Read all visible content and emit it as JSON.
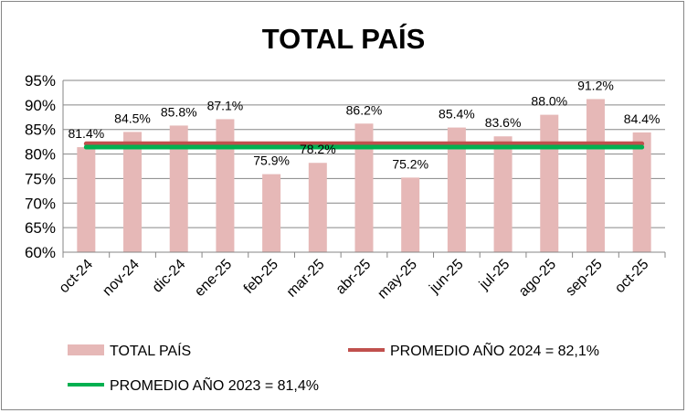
{
  "chart_data": {
    "type": "bar",
    "title": "TOTAL PAÍS",
    "xlabel": "",
    "ylabel": "",
    "categories": [
      "oct-24",
      "nov-24",
      "dic-24",
      "ene-25",
      "feb-25",
      "mar-25",
      "abr-25",
      "may-25",
      "jun-25",
      "jul-25",
      "ago-25",
      "sep-25",
      "oct-25"
    ],
    "values": [
      81.4,
      84.5,
      85.8,
      87.1,
      75.9,
      78.2,
      86.2,
      75.2,
      85.4,
      83.6,
      88.0,
      91.2,
      84.4
    ],
    "data_labels": [
      "81.4%",
      "84.5%",
      "85.8%",
      "87.1%",
      "75.9%",
      "78.2%",
      "86.2%",
      "75.2%",
      "85.4%",
      "83.6%",
      "88.0%",
      "91.2%",
      "84.4%"
    ],
    "ylim": [
      60,
      95
    ],
    "yticks": [
      "60%",
      "65%",
      "70%",
      "75%",
      "80%",
      "85%",
      "90%",
      "95%"
    ],
    "grid": true,
    "bar_color": "#E6B8B7",
    "reference_lines": [
      {
        "name": "PROMEDIO AÑO 2024 = 82,1%",
        "value": 82.1,
        "color": "#C0504D"
      },
      {
        "name": "PROMEDIO AÑO 2023 = 81,4%",
        "value": 81.4,
        "color": "#00B050"
      }
    ],
    "legend": {
      "placement": "bottom",
      "entries": [
        "TOTAL PAÍS",
        "PROMEDIO AÑO 2024 = 82,1%",
        "PROMEDIO AÑO 2023 = 81,4%"
      ]
    }
  }
}
